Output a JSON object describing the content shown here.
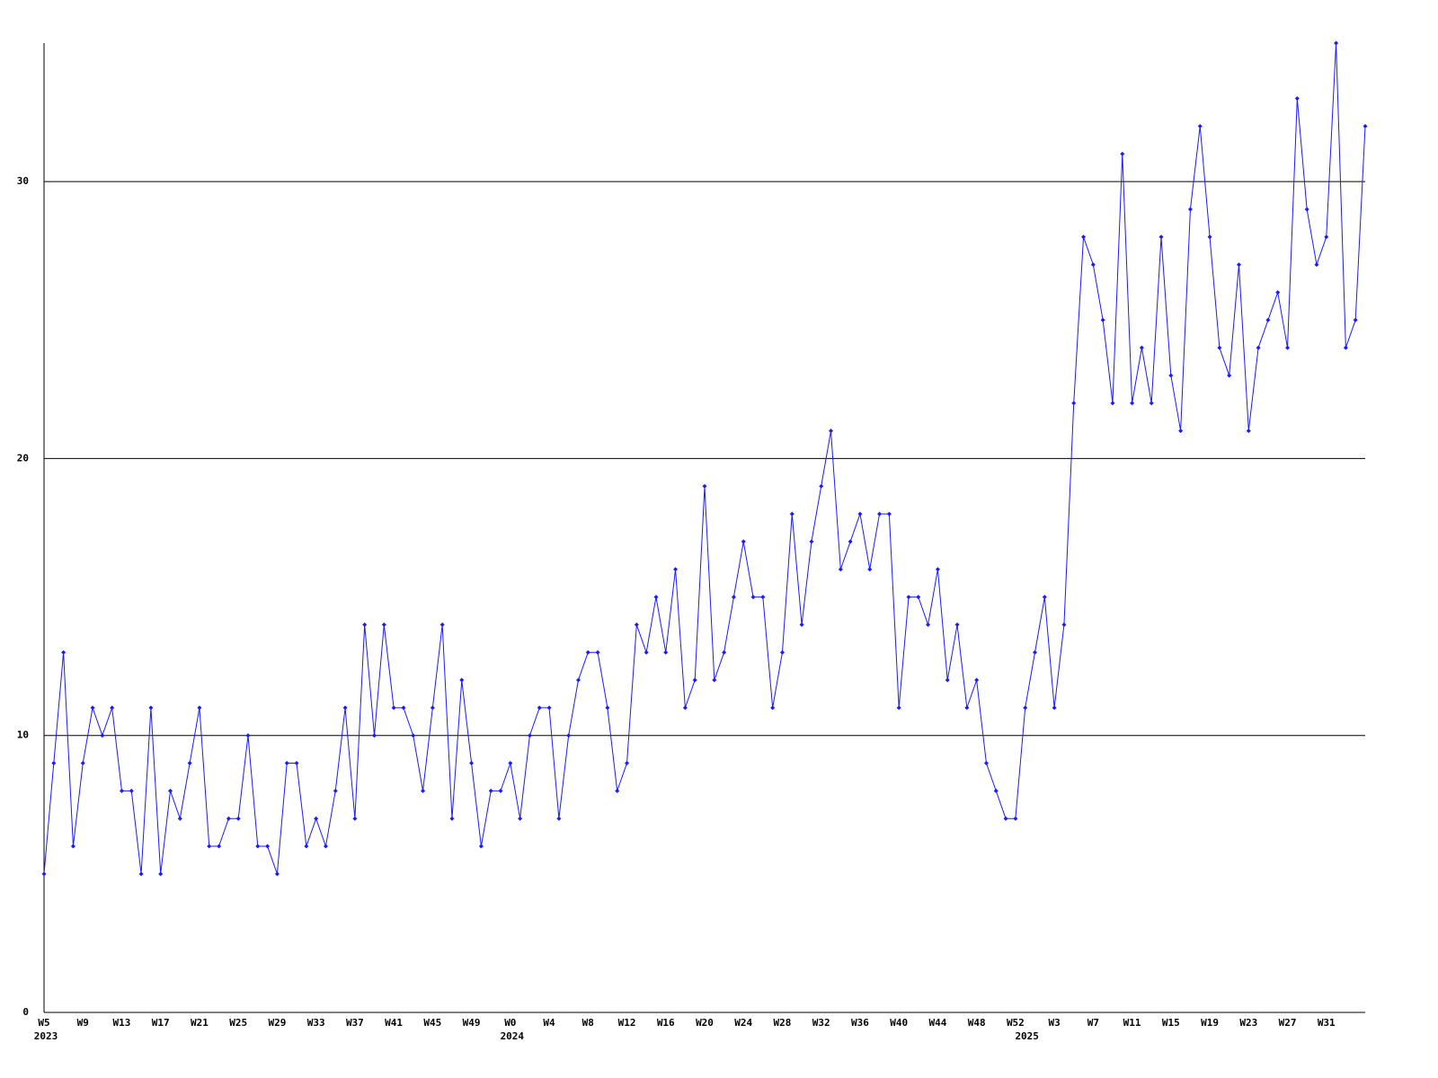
{
  "chart_data": {
    "type": "line",
    "categories": [
      "W5",
      null,
      null,
      null,
      "W9",
      null,
      null,
      null,
      "W13",
      null,
      null,
      null,
      "W17",
      null,
      null,
      null,
      "W21",
      null,
      null,
      null,
      "W25",
      null,
      null,
      null,
      "W29",
      null,
      null,
      null,
      "W33",
      null,
      null,
      null,
      "W37",
      null,
      null,
      null,
      "W41",
      null,
      null,
      null,
      "W45",
      null,
      null,
      null,
      "W49",
      null,
      null,
      null,
      "W0",
      null,
      null,
      null,
      "W4",
      null,
      null,
      null,
      "W8",
      null,
      null,
      null,
      "W12",
      null,
      null,
      null,
      "W16",
      null,
      null,
      null,
      "W20",
      null,
      null,
      null,
      "W24",
      null,
      null,
      null,
      "W28",
      null,
      null,
      null,
      "W32",
      null,
      null,
      null,
      "W36",
      null,
      null,
      null,
      "W40",
      null,
      null,
      null,
      "W44",
      null,
      null,
      null,
      "W48",
      null,
      null,
      null,
      "W52",
      null,
      null,
      null,
      "W3",
      null,
      null,
      null,
      "W7",
      null,
      null,
      null,
      "W11",
      null,
      null,
      null,
      "W15",
      null,
      null,
      null,
      "W19",
      null,
      null,
      null,
      "W23",
      null,
      null,
      null,
      "W27",
      null,
      null,
      null,
      "W31",
      null,
      null,
      null,
      null
    ],
    "years": [
      "2023",
      null,
      null,
      null,
      null,
      null,
      null,
      null,
      null,
      null,
      null,
      null,
      null,
      null,
      null,
      null,
      null,
      null,
      null,
      null,
      null,
      null,
      null,
      null,
      null,
      null,
      null,
      null,
      null,
      null,
      null,
      null,
      null,
      null,
      null,
      null,
      null,
      null,
      null,
      null,
      null,
      null,
      null,
      null,
      null,
      null,
      null,
      null,
      "2024",
      null,
      null,
      null,
      null,
      null,
      null,
      null,
      null,
      null,
      null,
      null,
      null,
      null,
      null,
      null,
      null,
      null,
      null,
      null,
      null,
      null,
      null,
      null,
      null,
      null,
      null,
      null,
      null,
      null,
      null,
      null,
      null,
      null,
      null,
      null,
      null,
      null,
      null,
      null,
      null,
      null,
      null,
      null,
      null,
      null,
      null,
      null,
      null,
      null,
      null,
      null,
      null,
      "2025",
      null,
      null,
      null,
      null,
      null,
      null,
      null,
      null,
      null,
      null,
      null,
      null,
      null,
      null,
      null,
      null,
      null,
      null,
      null,
      null,
      null,
      null,
      null,
      null,
      null,
      null,
      null,
      null,
      null,
      null,
      null,
      null,
      null,
      null,
      null
    ],
    "series": [
      {
        "color": "#1a1aff",
        "values": [
          5,
          9,
          13,
          6,
          9,
          11,
          10,
          11,
          8,
          8,
          5,
          11,
          5,
          8,
          7,
          9,
          11,
          6,
          6,
          7,
          7,
          10,
          6,
          6,
          5,
          9,
          9,
          6,
          7,
          6,
          8,
          11,
          7,
          14,
          10,
          14,
          11,
          11,
          10,
          8,
          11,
          14,
          7,
          12,
          9,
          6,
          8,
          8,
          9,
          7,
          10,
          11,
          11,
          7,
          10,
          12,
          13,
          13,
          11,
          8,
          9,
          14,
          13,
          15,
          13,
          16,
          11,
          12,
          19,
          12,
          13,
          15,
          17,
          15,
          15,
          11,
          13,
          18,
          14,
          17,
          19,
          21,
          16,
          17,
          18,
          16,
          18,
          18,
          11,
          15,
          15,
          14,
          16,
          12,
          14,
          11,
          12,
          9,
          8,
          7,
          7,
          11,
          13,
          15,
          11,
          14,
          22,
          28,
          27,
          25,
          22,
          31,
          22,
          24,
          22,
          28,
          23,
          21,
          29,
          32,
          28,
          24,
          23,
          27,
          21,
          24,
          25,
          26,
          24,
          33,
          29,
          27,
          28,
          35,
          24,
          25,
          32
        ]
      }
    ],
    "ylim": [
      0,
      35
    ],
    "yticks": [
      0,
      10,
      20,
      30
    ],
    "grid": true
  }
}
